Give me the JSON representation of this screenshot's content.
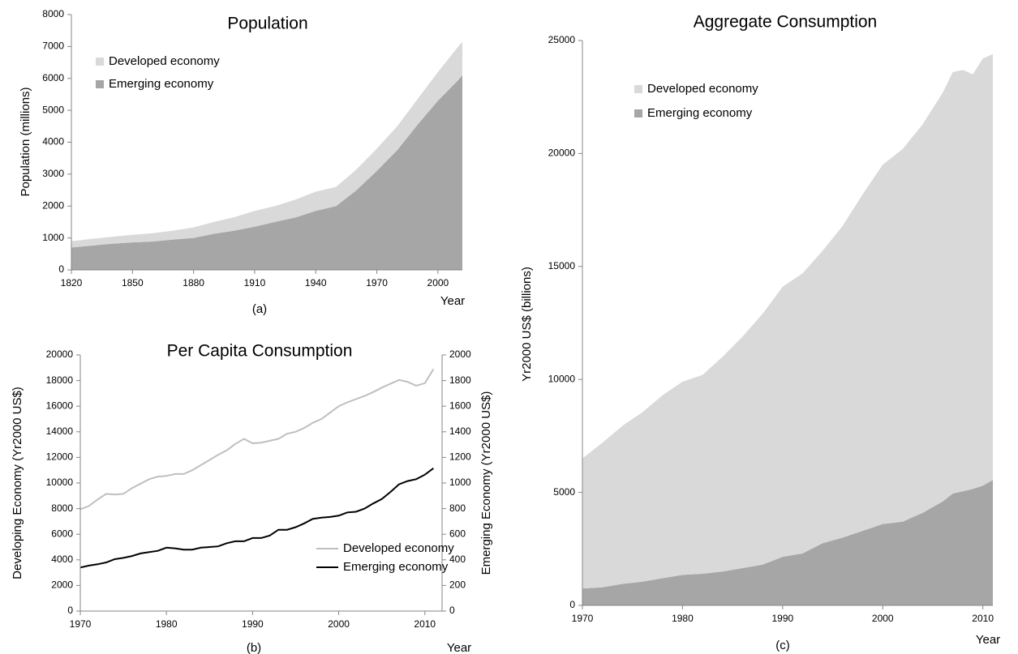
{
  "chart_data": [
    {
      "type": "area",
      "title": "Population",
      "ylabel": "Population (millions)",
      "xlabel": "Year",
      "caption": "(a)",
      "x": [
        1820,
        1830,
        1840,
        1850,
        1860,
        1870,
        1880,
        1890,
        1900,
        1910,
        1920,
        1930,
        1940,
        1950,
        1960,
        1970,
        1980,
        1990,
        2000,
        2010,
        2012
      ],
      "series": [
        {
          "name": "Emerging economy",
          "color": "#a6a6a6",
          "values": [
            700,
            760,
            820,
            860,
            890,
            950,
            1000,
            1130,
            1230,
            1350,
            1500,
            1640,
            1850,
            2000,
            2500,
            3100,
            3750,
            4550,
            5300,
            5950,
            6100
          ]
        },
        {
          "name": "Developed economy",
          "color": "#d9d9d9",
          "values": [
            200,
            210,
            220,
            240,
            260,
            280,
            330,
            370,
            420,
            500,
            500,
            560,
            600,
            600,
            650,
            700,
            750,
            800,
            900,
            1050,
            1050
          ]
        }
      ],
      "xlim": [
        1820,
        2012
      ],
      "xticks": [
        1820,
        1850,
        1880,
        1910,
        1940,
        1970,
        2000
      ],
      "ylim": [
        0,
        8000
      ],
      "yticks": [
        0,
        1000,
        2000,
        3000,
        4000,
        5000,
        6000,
        7000,
        8000
      ],
      "legend": "upper left"
    },
    {
      "type": "line",
      "title": "Per Capita Consumption",
      "ylabel": "Developing Economy (Yr2000 US$)",
      "y2label": "Emerging Economy (Yr2000 US$)",
      "xlabel": "Year",
      "caption": "(b)",
      "x": [
        1970,
        1971,
        1972,
        1973,
        1974,
        1975,
        1976,
        1977,
        1978,
        1979,
        1980,
        1981,
        1982,
        1983,
        1984,
        1985,
        1986,
        1987,
        1988,
        1989,
        1990,
        1991,
        1992,
        1993,
        1994,
        1995,
        1996,
        1997,
        1998,
        1999,
        2000,
        2001,
        2002,
        2003,
        2004,
        2005,
        2006,
        2007,
        2008,
        2009,
        2010,
        2011
      ],
      "series": [
        {
          "name": "Developed economy",
          "color": "#bfbfbf",
          "values": [
            7950,
            8200,
            8700,
            9150,
            9100,
            9150,
            9600,
            9950,
            10300,
            10500,
            10550,
            10700,
            10700,
            11000,
            11400,
            11800,
            12200,
            12550,
            13050,
            13450,
            13100,
            13150,
            13300,
            13450,
            13850,
            14000,
            14300,
            14700,
            15000,
            15500,
            16000,
            16300,
            16550,
            16800,
            17100,
            17450,
            17750,
            18050,
            17900,
            17600,
            17800,
            18900
          ]
        },
        {
          "name": "Emerging economy",
          "color": "#000000",
          "axis": "y2",
          "values": [
            340,
            355,
            365,
            380,
            405,
            415,
            430,
            450,
            460,
            470,
            495,
            490,
            480,
            480,
            495,
            500,
            505,
            530,
            545,
            545,
            570,
            570,
            590,
            635,
            635,
            655,
            685,
            720,
            730,
            735,
            745,
            770,
            775,
            800,
            840,
            875,
            930,
            990,
            1015,
            1030,
            1065,
            1115
          ]
        }
      ],
      "xlim": [
        1970,
        2012
      ],
      "xticks": [
        1970,
        1980,
        1990,
        2000,
        2010
      ],
      "ylim": [
        0,
        20000
      ],
      "yticks": [
        0,
        2000,
        4000,
        6000,
        8000,
        10000,
        12000,
        14000,
        16000,
        18000,
        20000
      ],
      "y2lim": [
        0,
        2000
      ],
      "y2ticks": [
        0,
        200,
        400,
        600,
        800,
        1000,
        1200,
        1400,
        1600,
        1800,
        2000
      ],
      "legend": "lower right"
    },
    {
      "type": "area",
      "title": "Aggregate Consumption",
      "ylabel": "Yr2000 US$ (billions)",
      "xlabel": "Year",
      "caption": "(c)",
      "x": [
        1970,
        1972,
        1974,
        1976,
        1978,
        1980,
        1982,
        1984,
        1986,
        1988,
        1990,
        1992,
        1994,
        1996,
        1998,
        2000,
        2002,
        2004,
        2006,
        2007,
        2008,
        2009,
        2010,
        2011
      ],
      "series": [
        {
          "name": "Emerging economy",
          "color": "#a6a6a6",
          "values": [
            750,
            800,
            950,
            1050,
            1200,
            1350,
            1400,
            1500,
            1650,
            1800,
            2150,
            2300,
            2750,
            3000,
            3300,
            3600,
            3700,
            4100,
            4600,
            4950,
            5050,
            5150,
            5300,
            5550
          ]
        },
        {
          "name": "Developed economy",
          "color": "#d9d9d9",
          "values": [
            5750,
            6400,
            7000,
            7500,
            8100,
            8550,
            8800,
            9500,
            10250,
            11100,
            11950,
            12400,
            12950,
            13800,
            14900,
            15900,
            16500,
            17200,
            18100,
            18650,
            18650,
            18350,
            18900,
            18850
          ]
        }
      ],
      "xlim": [
        1970,
        2011
      ],
      "xticks": [
        1970,
        1980,
        1990,
        2000,
        2010
      ],
      "ylim": [
        0,
        25000
      ],
      "yticks": [
        0,
        5000,
        10000,
        15000,
        20000,
        25000
      ],
      "legend": "upper left"
    }
  ]
}
